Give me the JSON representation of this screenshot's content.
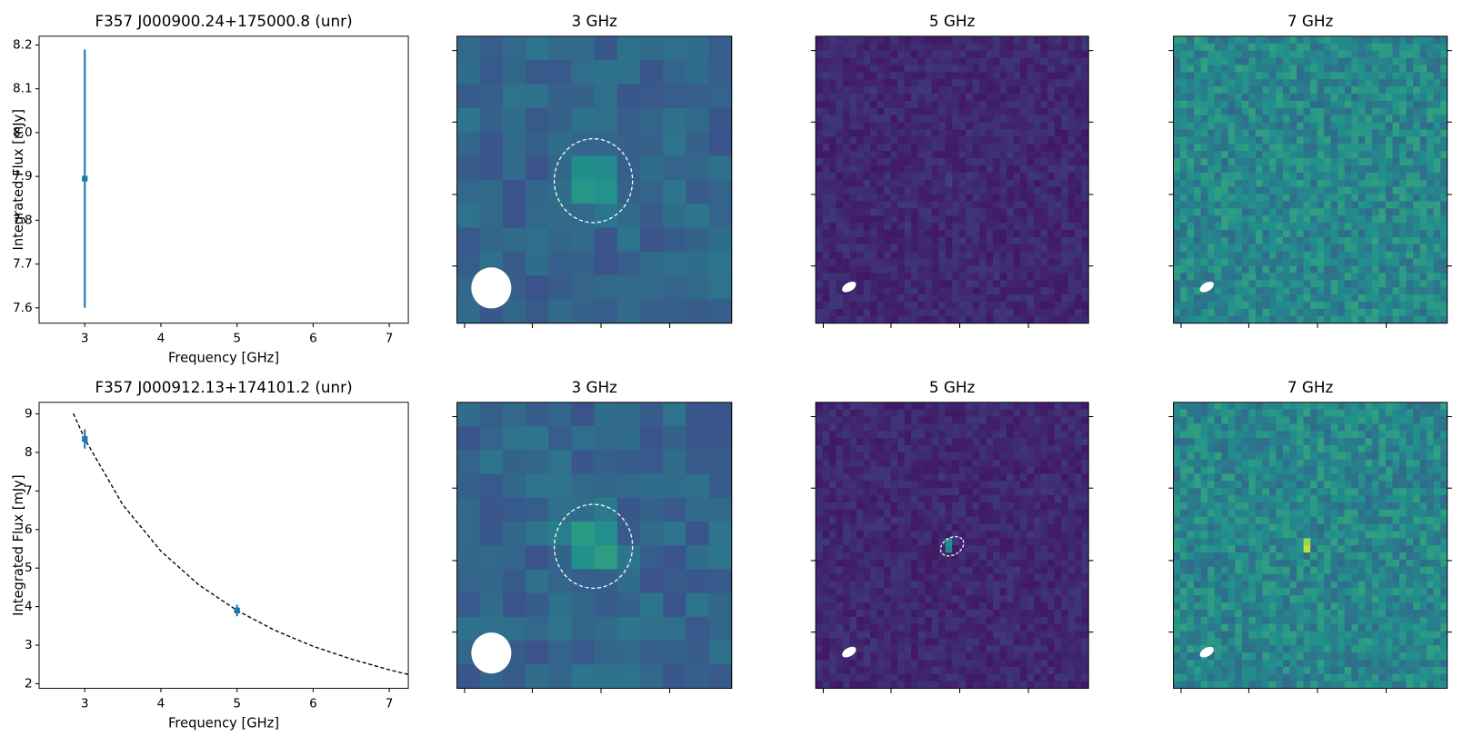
{
  "chart_data": [
    {
      "type": "errorbar",
      "title": "F357 J000900.24+175000.8 (unr)",
      "x_label": "Frequency [GHz]",
      "y_label": "Integrated Flux [mJy]",
      "x": [
        3
      ],
      "y": [
        7.895
      ],
      "yerr": [
        0.295
      ],
      "color": "#1f77b4",
      "xlim": [
        2.4,
        7.25
      ],
      "ylim": [
        7.565,
        8.22
      ],
      "xticks": [
        3,
        4,
        5,
        6,
        7
      ],
      "yticks": [
        7.6,
        7.7,
        7.8,
        7.9,
        {
          "value": 8,
          "label": "8.0"
        },
        8.1,
        8.2
      ]
    },
    {
      "type": "image",
      "title": "3 GHz"
    },
    {
      "type": "image",
      "title": "5 GHz"
    },
    {
      "type": "image",
      "title": "7 GHz"
    },
    {
      "type": "errorbar",
      "title": "F357 J000912.13+174101.2 (unr)",
      "x_label": "Frequency [GHz]",
      "y_label": "Integrated Flux [mJy]",
      "x": [
        3,
        5
      ],
      "y": [
        8.35,
        3.9
      ],
      "yerr": [
        0.25,
        0.15
      ],
      "color": "#1f77b4",
      "fit": {
        "x": [
          2.85,
          3,
          3.5,
          4,
          4.5,
          5,
          5.5,
          6,
          6.5,
          7,
          7.25
        ],
        "y": [
          9.01,
          8.35,
          6.64,
          5.44,
          4.56,
          3.9,
          3.38,
          2.97,
          2.64,
          2.36,
          2.24
        ],
        "color": "#000000"
      },
      "xlim": [
        2.4,
        7.25
      ],
      "ylim": [
        1.88,
        9.3
      ],
      "xticks": [
        3,
        4,
        5,
        6,
        7
      ],
      "yticks": [
        2,
        3,
        4,
        5,
        6,
        7,
        8,
        9
      ]
    },
    {
      "type": "image",
      "title": "3 GHz"
    },
    {
      "type": "image",
      "title": "5 GHz"
    },
    {
      "type": "image",
      "title": "7 GHz"
    }
  ]
}
